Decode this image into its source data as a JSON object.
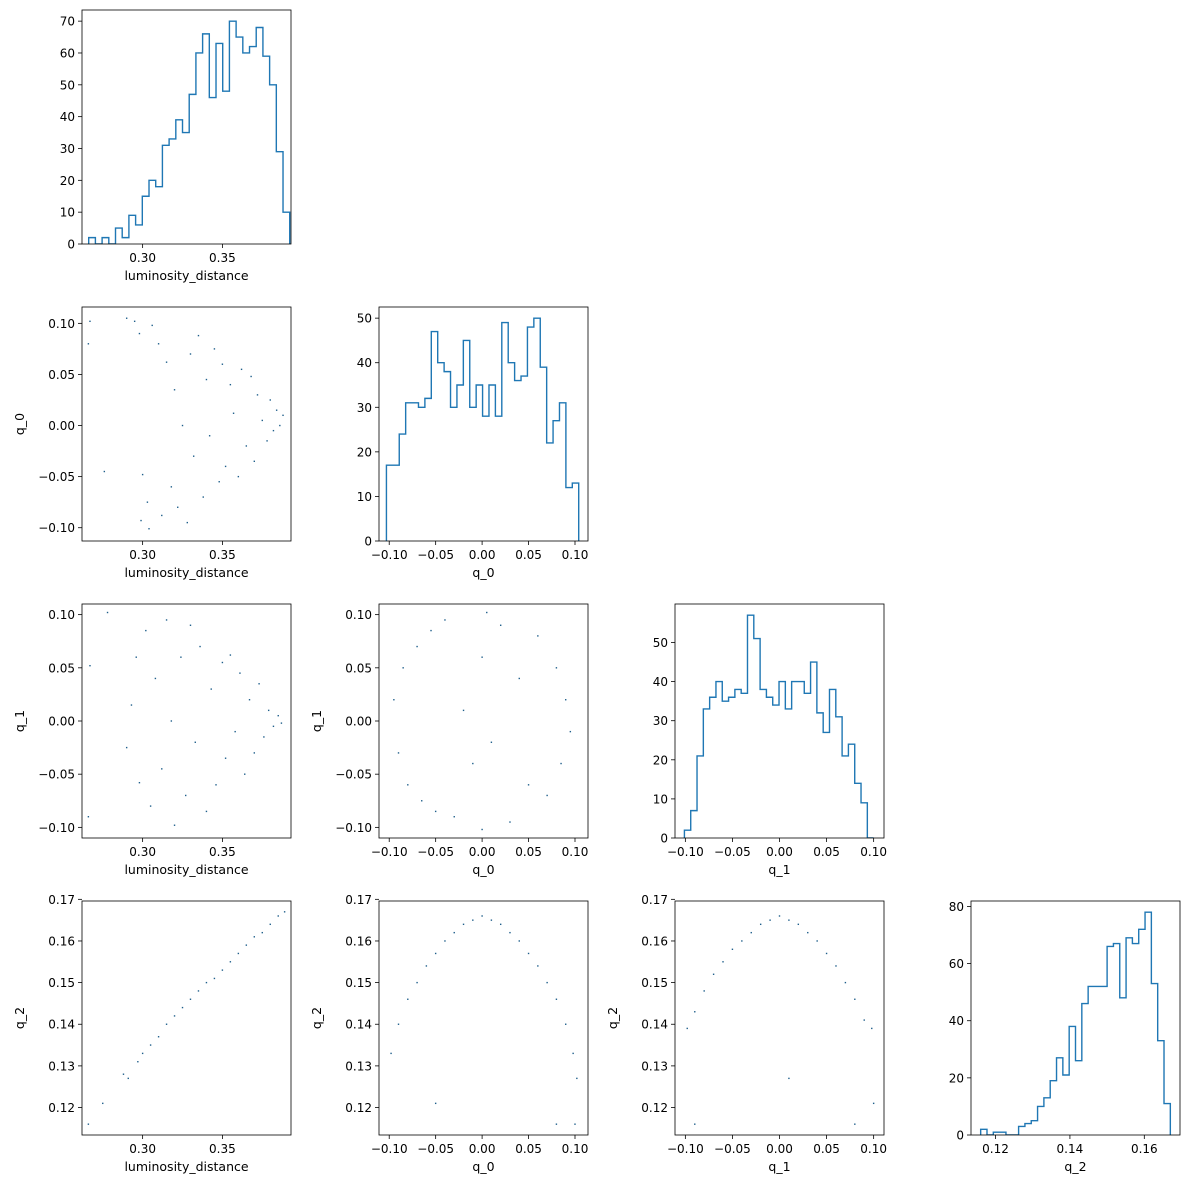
{
  "chart_data": [
    {
      "id": "hist_luminosity_distance",
      "type": "histogram",
      "xlabel": "luminosity_distance",
      "ylabel": "",
      "xlim": [
        0.262,
        0.393
      ],
      "ylim": [
        0,
        73.5
      ],
      "xticks": [
        0.3,
        0.35
      ],
      "xtick_labels": [
        "0.30",
        "0.35"
      ],
      "yticks": [
        0,
        10,
        20,
        30,
        40,
        50,
        60,
        70
      ],
      "ytick_labels": [
        "0",
        "10",
        "20",
        "30",
        "40",
        "50",
        "60",
        "70"
      ],
      "bin_edges": [
        0.2662,
        0.2704,
        0.2746,
        0.2788,
        0.283,
        0.2872,
        0.2914,
        0.2956,
        0.2998,
        0.304,
        0.3082,
        0.3124,
        0.3166,
        0.3208,
        0.325,
        0.3292,
        0.3334,
        0.3376,
        0.3418,
        0.346,
        0.3502,
        0.3544,
        0.3586,
        0.3628,
        0.367,
        0.3712,
        0.3754,
        0.3796,
        0.3838,
        0.388,
        0.3922
      ],
      "counts": [
        2,
        0,
        2,
        0,
        5,
        2,
        9,
        6,
        15,
        20,
        18,
        31,
        33,
        39,
        35,
        47,
        60,
        66,
        46,
        63,
        48,
        70,
        65,
        60,
        62,
        68,
        59,
        50,
        29,
        10
      ]
    },
    {
      "id": "scatter_q_0_vs_luminosity_distance",
      "type": "scatter",
      "xlabel": "luminosity_distance",
      "ylabel": "q_0",
      "xlim": [
        0.262,
        0.393
      ],
      "ylim": [
        -0.113,
        0.116
      ],
      "xticks": [
        0.3,
        0.35
      ],
      "xtick_labels": [
        "0.30",
        "0.35"
      ],
      "yticks": [
        -0.1,
        -0.05,
        0.0,
        0.05,
        0.1
      ],
      "ytick_labels": [
        "−0.10",
        "−0.05",
        "0.00",
        "0.05",
        "0.10"
      ],
      "points": [
        [
          0.267,
          0.102
        ],
        [
          0.266,
          0.08
        ],
        [
          0.276,
          -0.045
        ],
        [
          0.29,
          0.105
        ],
        [
          0.295,
          0.102
        ],
        [
          0.298,
          0.09
        ],
        [
          0.299,
          -0.093
        ],
        [
          0.304,
          -0.101
        ],
        [
          0.3,
          -0.048
        ],
        [
          0.303,
          -0.075
        ],
        [
          0.306,
          0.098
        ],
        [
          0.31,
          0.08
        ],
        [
          0.312,
          -0.088
        ],
        [
          0.315,
          0.062
        ],
        [
          0.318,
          -0.06
        ],
        [
          0.32,
          0.035
        ],
        [
          0.322,
          -0.08
        ],
        [
          0.325,
          0.0
        ],
        [
          0.328,
          -0.095
        ],
        [
          0.33,
          0.07
        ],
        [
          0.332,
          -0.03
        ],
        [
          0.335,
          0.088
        ],
        [
          0.338,
          -0.07
        ],
        [
          0.34,
          0.045
        ],
        [
          0.342,
          -0.01
        ],
        [
          0.345,
          0.075
        ],
        [
          0.348,
          -0.055
        ],
        [
          0.35,
          0.06
        ],
        [
          0.352,
          -0.04
        ],
        [
          0.355,
          0.04
        ],
        [
          0.357,
          0.012
        ],
        [
          0.36,
          -0.05
        ],
        [
          0.362,
          0.055
        ],
        [
          0.365,
          -0.02
        ],
        [
          0.368,
          0.048
        ],
        [
          0.37,
          -0.035
        ],
        [
          0.372,
          0.03
        ],
        [
          0.375,
          0.005
        ],
        [
          0.378,
          -0.015
        ],
        [
          0.38,
          0.025
        ],
        [
          0.382,
          -0.005
        ],
        [
          0.384,
          0.015
        ],
        [
          0.386,
          0.0
        ],
        [
          0.388,
          0.01
        ]
      ]
    },
    {
      "id": "hist_q_0",
      "type": "histogram",
      "xlabel": "q_0",
      "ylabel": "",
      "xlim": [
        -0.111,
        0.114
      ],
      "ylim": [
        0,
        52.5
      ],
      "xticks": [
        -0.1,
        -0.05,
        0.0,
        0.05,
        0.1
      ],
      "xtick_labels": [
        "−0.10",
        "−0.05",
        "0.00",
        "0.05",
        "0.10"
      ],
      "yticks": [
        0,
        10,
        20,
        30,
        40,
        50
      ],
      "ytick_labels": [
        "0",
        "10",
        "20",
        "30",
        "40",
        "50"
      ],
      "bin_edges": [
        -0.103,
        -0.0961,
        -0.0892,
        -0.0823,
        -0.0754,
        -0.0685,
        -0.0616,
        -0.0547,
        -0.0478,
        -0.0409,
        -0.034,
        -0.0271,
        -0.0202,
        -0.0133,
        -0.0064,
        0.0005,
        0.0074,
        0.0143,
        0.0212,
        0.0281,
        0.035,
        0.0419,
        0.0488,
        0.0557,
        0.0626,
        0.0695,
        0.0764,
        0.0833,
        0.0902,
        0.0971,
        0.104
      ],
      "counts": [
        17,
        17,
        24,
        31,
        31,
        30,
        32,
        47,
        40,
        38,
        30,
        35,
        45,
        30,
        35,
        28,
        35,
        28,
        49,
        40,
        36,
        37,
        48,
        50,
        39,
        22,
        27,
        31,
        12,
        13
      ]
    },
    {
      "id": "scatter_q_1_vs_luminosity_distance",
      "type": "scatter",
      "xlabel": "luminosity_distance",
      "ylabel": "q_1",
      "xlim": [
        0.262,
        0.393
      ],
      "ylim": [
        -0.11,
        0.11
      ],
      "xticks": [
        0.3,
        0.35
      ],
      "xtick_labels": [
        "0.30",
        "0.35"
      ],
      "yticks": [
        -0.1,
        -0.05,
        0.0,
        0.05,
        0.1
      ],
      "ytick_labels": [
        "−0.10",
        "−0.05",
        "0.00",
        "0.05",
        "0.10"
      ],
      "points": [
        [
          0.267,
          0.052
        ],
        [
          0.266,
          -0.09
        ],
        [
          0.278,
          0.102
        ],
        [
          0.29,
          -0.025
        ],
        [
          0.293,
          0.015
        ],
        [
          0.296,
          0.06
        ],
        [
          0.298,
          -0.058
        ],
        [
          0.302,
          0.085
        ],
        [
          0.305,
          -0.08
        ],
        [
          0.308,
          0.04
        ],
        [
          0.312,
          -0.045
        ],
        [
          0.315,
          0.095
        ],
        [
          0.318,
          0.0
        ],
        [
          0.32,
          -0.098
        ],
        [
          0.324,
          0.06
        ],
        [
          0.327,
          -0.07
        ],
        [
          0.33,
          0.09
        ],
        [
          0.333,
          -0.02
        ],
        [
          0.336,
          0.07
        ],
        [
          0.34,
          -0.085
        ],
        [
          0.343,
          0.03
        ],
        [
          0.346,
          -0.06
        ],
        [
          0.35,
          0.055
        ],
        [
          0.352,
          -0.035
        ],
        [
          0.355,
          0.062
        ],
        [
          0.358,
          -0.01
        ],
        [
          0.361,
          0.045
        ],
        [
          0.364,
          -0.05
        ],
        [
          0.367,
          0.02
        ],
        [
          0.37,
          -0.03
        ],
        [
          0.373,
          0.035
        ],
        [
          0.376,
          -0.015
        ],
        [
          0.379,
          0.01
        ],
        [
          0.382,
          -0.005
        ],
        [
          0.385,
          0.005
        ],
        [
          0.387,
          -0.002
        ]
      ]
    },
    {
      "id": "scatter_q_1_vs_q_0",
      "type": "scatter",
      "xlabel": "q_0",
      "ylabel": "q_1",
      "xlim": [
        -0.111,
        0.114
      ],
      "ylim": [
        -0.11,
        0.11
      ],
      "xticks": [
        -0.1,
        -0.05,
        0.0,
        0.05,
        0.1
      ],
      "xtick_labels": [
        "−0.10",
        "−0.05",
        "0.00",
        "0.05",
        "0.10"
      ],
      "yticks": [
        -0.1,
        -0.05,
        0.0,
        0.05,
        0.1
      ],
      "ytick_labels": [
        "−0.10",
        "−0.05",
        "0.00",
        "0.05",
        "0.10"
      ],
      "points": [
        [
          -0.095,
          0.02
        ],
        [
          -0.09,
          -0.03
        ],
        [
          -0.085,
          0.05
        ],
        [
          -0.08,
          -0.06
        ],
        [
          -0.07,
          0.07
        ],
        [
          -0.065,
          -0.075
        ],
        [
          -0.055,
          0.085
        ],
        [
          -0.05,
          -0.085
        ],
        [
          -0.04,
          0.095
        ],
        [
          -0.03,
          -0.09
        ],
        [
          -0.02,
          0.01
        ],
        [
          -0.01,
          -0.04
        ],
        [
          0.0,
          0.06
        ],
        [
          0.01,
          -0.02
        ],
        [
          0.02,
          0.09
        ],
        [
          0.03,
          -0.095
        ],
        [
          0.04,
          0.04
        ],
        [
          0.05,
          -0.06
        ],
        [
          0.06,
          0.08
        ],
        [
          0.07,
          -0.07
        ],
        [
          0.08,
          0.05
        ],
        [
          0.085,
          -0.04
        ],
        [
          0.09,
          0.02
        ],
        [
          0.095,
          -0.01
        ],
        [
          0.005,
          0.102
        ],
        [
          0.0,
          -0.102
        ]
      ]
    },
    {
      "id": "hist_q_1",
      "type": "histogram",
      "xlabel": "q_1",
      "ylabel": "",
      "xlim": [
        -0.111,
        0.111
      ],
      "ylim": [
        0,
        59.85
      ],
      "xticks": [
        -0.1,
        -0.05,
        0.0,
        0.05,
        0.1
      ],
      "xtick_labels": [
        "−0.10",
        "−0.05",
        "0.00",
        "0.05",
        "0.10"
      ],
      "yticks": [
        0,
        10,
        20,
        30,
        40,
        50
      ],
      "ytick_labels": [
        "0",
        "10",
        "20",
        "30",
        "40",
        "50"
      ],
      "bin_edges": [
        -0.101,
        -0.0943,
        -0.0876,
        -0.0809,
        -0.0742,
        -0.0675,
        -0.0608,
        -0.0541,
        -0.0474,
        -0.0407,
        -0.034,
        -0.0273,
        -0.0206,
        -0.0139,
        -0.0072,
        -0.0005,
        0.0062,
        0.0129,
        0.0196,
        0.0263,
        0.033,
        0.0397,
        0.0464,
        0.0531,
        0.0598,
        0.0665,
        0.0732,
        0.0799,
        0.0866,
        0.0933,
        0.1
      ],
      "counts": [
        2,
        7,
        21,
        33,
        36,
        40,
        35,
        36,
        38,
        37,
        57,
        51,
        38,
        36,
        34,
        40,
        33,
        40,
        40,
        37,
        45,
        32,
        27,
        38,
        31,
        21,
        24,
        14,
        9,
        0
      ]
    },
    {
      "id": "scatter_q_2_vs_luminosity_distance",
      "type": "scatter",
      "xlabel": "luminosity_distance",
      "ylabel": "q_2",
      "xlim": [
        0.262,
        0.393
      ],
      "ylim": [
        0.1134,
        0.1696
      ],
      "xticks": [
        0.3,
        0.35
      ],
      "xtick_labels": [
        "0.30",
        "0.35"
      ],
      "yticks": [
        0.12,
        0.13,
        0.14,
        0.15,
        0.16,
        0.17
      ],
      "ytick_labels": [
        "0.12",
        "0.13",
        "0.14",
        "0.15",
        "0.16",
        "0.17"
      ],
      "points": [
        [
          0.266,
          0.116
        ],
        [
          0.275,
          0.121
        ],
        [
          0.288,
          0.128
        ],
        [
          0.291,
          0.127
        ],
        [
          0.297,
          0.131
        ],
        [
          0.3,
          0.133
        ],
        [
          0.305,
          0.135
        ],
        [
          0.31,
          0.137
        ],
        [
          0.315,
          0.14
        ],
        [
          0.32,
          0.142
        ],
        [
          0.325,
          0.144
        ],
        [
          0.33,
          0.146
        ],
        [
          0.335,
          0.148
        ],
        [
          0.34,
          0.15
        ],
        [
          0.345,
          0.151
        ],
        [
          0.35,
          0.153
        ],
        [
          0.355,
          0.155
        ],
        [
          0.36,
          0.157
        ],
        [
          0.365,
          0.159
        ],
        [
          0.37,
          0.161
        ],
        [
          0.375,
          0.162
        ],
        [
          0.38,
          0.164
        ],
        [
          0.385,
          0.166
        ],
        [
          0.389,
          0.167
        ]
      ]
    },
    {
      "id": "scatter_q_2_vs_q_0",
      "type": "scatter",
      "xlabel": "q_0",
      "ylabel": "q_2",
      "xlim": [
        -0.111,
        0.114
      ],
      "ylim": [
        0.1134,
        0.1696
      ],
      "xticks": [
        -0.1,
        -0.05,
        0.0,
        0.05,
        0.1
      ],
      "xtick_labels": [
        "−0.10",
        "−0.05",
        "0.00",
        "0.05",
        "0.10"
      ],
      "yticks": [
        0.12,
        0.13,
        0.14,
        0.15,
        0.16,
        0.17
      ],
      "ytick_labels": [
        "0.12",
        "0.13",
        "0.14",
        "0.15",
        "0.16",
        "0.17"
      ],
      "points": [
        [
          -0.098,
          0.133
        ],
        [
          -0.09,
          0.14
        ],
        [
          -0.08,
          0.146
        ],
        [
          -0.07,
          0.15
        ],
        [
          -0.06,
          0.154
        ],
        [
          -0.05,
          0.157
        ],
        [
          -0.04,
          0.16
        ],
        [
          -0.03,
          0.162
        ],
        [
          -0.02,
          0.164
        ],
        [
          -0.01,
          0.165
        ],
        [
          0.0,
          0.166
        ],
        [
          0.01,
          0.165
        ],
        [
          0.02,
          0.164
        ],
        [
          0.03,
          0.162
        ],
        [
          0.04,
          0.16
        ],
        [
          0.05,
          0.157
        ],
        [
          0.06,
          0.154
        ],
        [
          0.07,
          0.15
        ],
        [
          0.08,
          0.146
        ],
        [
          0.09,
          0.14
        ],
        [
          0.098,
          0.133
        ],
        [
          -0.05,
          0.121
        ],
        [
          0.08,
          0.116
        ],
        [
          0.1,
          0.116
        ],
        [
          0.102,
          0.127
        ]
      ]
    },
    {
      "id": "scatter_q_2_vs_q_1",
      "type": "scatter",
      "xlabel": "q_1",
      "ylabel": "q_2",
      "xlim": [
        -0.111,
        0.111
      ],
      "ylim": [
        0.1134,
        0.1696
      ],
      "xticks": [
        -0.1,
        -0.05,
        0.0,
        0.05,
        0.1
      ],
      "xtick_labels": [
        "−0.10",
        "−0.05",
        "0.00",
        "0.05",
        "0.10"
      ],
      "yticks": [
        0.12,
        0.13,
        0.14,
        0.15,
        0.16,
        0.17
      ],
      "ytick_labels": [
        "0.12",
        "0.13",
        "0.14",
        "0.15",
        "0.16",
        "0.17"
      ],
      "points": [
        [
          -0.098,
          0.139
        ],
        [
          -0.09,
          0.143
        ],
        [
          -0.08,
          0.148
        ],
        [
          -0.07,
          0.152
        ],
        [
          -0.06,
          0.155
        ],
        [
          -0.05,
          0.158
        ],
        [
          -0.04,
          0.16
        ],
        [
          -0.03,
          0.162
        ],
        [
          -0.02,
          0.164
        ],
        [
          -0.01,
          0.165
        ],
        [
          0.0,
          0.166
        ],
        [
          0.01,
          0.165
        ],
        [
          0.02,
          0.164
        ],
        [
          0.03,
          0.162
        ],
        [
          0.04,
          0.16
        ],
        [
          0.05,
          0.157
        ],
        [
          0.06,
          0.154
        ],
        [
          0.07,
          0.15
        ],
        [
          0.08,
          0.146
        ],
        [
          0.09,
          0.141
        ],
        [
          0.098,
          0.139
        ],
        [
          -0.09,
          0.116
        ],
        [
          0.08,
          0.116
        ],
        [
          0.1,
          0.121
        ],
        [
          0.01,
          0.127
        ]
      ]
    },
    {
      "id": "hist_q_2",
      "type": "histogram",
      "xlabel": "q_2",
      "ylabel": "",
      "xlim": [
        0.1134,
        0.1696
      ],
      "ylim": [
        0,
        81.9
      ],
      "xticks": [
        0.12,
        0.14,
        0.16
      ],
      "xtick_labels": [
        "0.12",
        "0.14",
        "0.16"
      ],
      "yticks": [
        0,
        20,
        40,
        60,
        80
      ],
      "ytick_labels": [
        "0",
        "20",
        "40",
        "60",
        "80"
      ],
      "bin_edges": [
        0.116,
        0.1177,
        0.1194,
        0.1211,
        0.1228,
        0.1245,
        0.1262,
        0.1279,
        0.1296,
        0.1313,
        0.133,
        0.1347,
        0.1364,
        0.1381,
        0.1398,
        0.1415,
        0.1432,
        0.1449,
        0.1466,
        0.1483,
        0.15,
        0.1517,
        0.1534,
        0.1551,
        0.1568,
        0.1585,
        0.1602,
        0.1619,
        0.1636,
        0.1653,
        0.167
      ],
      "counts": [
        2,
        0,
        1,
        1,
        0,
        0,
        3,
        4,
        5,
        10,
        13,
        19,
        27,
        21,
        38,
        26,
        46,
        52,
        52,
        52,
        66,
        67,
        48,
        69,
        67,
        72,
        78,
        53,
        33,
        11
      ]
    }
  ]
}
